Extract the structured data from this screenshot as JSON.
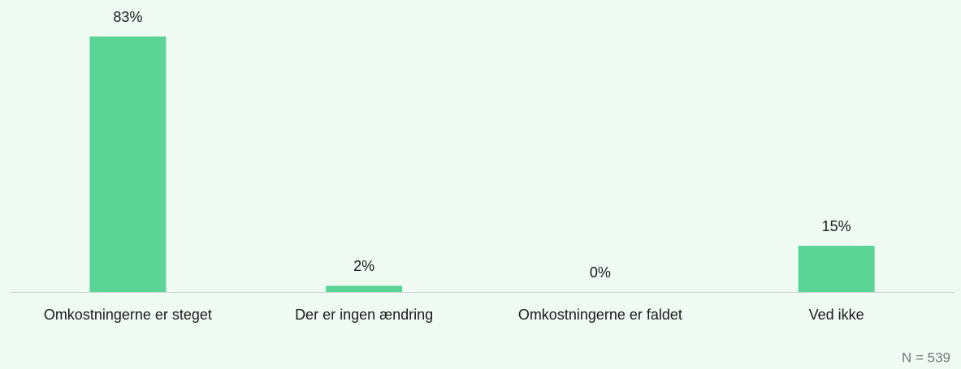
{
  "chart_data": {
    "type": "bar",
    "categories": [
      "Omkostningerne er steget",
      "Der er ingen ændring",
      "Omkostningerne er faldet",
      "Ved ikke"
    ],
    "values": [
      83,
      2,
      0,
      15
    ],
    "value_labels": [
      "83%",
      "2%",
      "0%",
      "15%"
    ],
    "color": "#5ad596",
    "annotation": "N = 539"
  }
}
